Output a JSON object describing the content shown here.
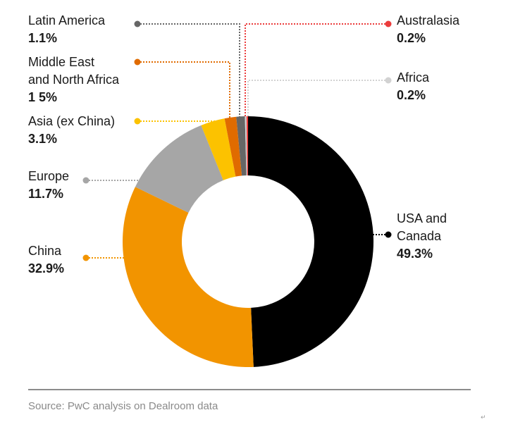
{
  "chart_data": {
    "type": "pie",
    "donut": true,
    "title": "",
    "slices": [
      {
        "label": "USA and Canada",
        "lines": [
          "USA and",
          "Canada"
        ],
        "value": 49.3,
        "value_text": "49.3%",
        "color": "#000000"
      },
      {
        "label": "China",
        "lines": [
          "China"
        ],
        "value": 32.9,
        "value_text": "32.9%",
        "color": "#f29400"
      },
      {
        "label": "Europe",
        "lines": [
          "Europe"
        ],
        "value": 11.7,
        "value_text": "11.7%",
        "color": "#a6a6a6"
      },
      {
        "label": "Asia (ex China)",
        "lines": [
          "Asia (ex China)"
        ],
        "value": 3.1,
        "value_text": "3.1%",
        "color": "#fcc200"
      },
      {
        "label": "Middle East and North Africa",
        "lines": [
          "Middle East",
          "and North Africa"
        ],
        "value": 1.5,
        "value_text": "1 5%",
        "color": "#e06b00"
      },
      {
        "label": "Latin America",
        "lines": [
          "Latin America"
        ],
        "value": 1.1,
        "value_text": "1.1%",
        "color": "#666666"
      },
      {
        "label": "Africa",
        "lines": [
          "Africa"
        ],
        "value": 0.2,
        "value_text": "0.2%",
        "color": "#d2d2d2"
      },
      {
        "label": "Australasia",
        "lines": [
          "Australasia"
        ],
        "value": 0.2,
        "value_text": "0.2%",
        "color": "#eb3c3c"
      }
    ]
  },
  "footer": {
    "source": "Source: PwC analysis on Dealroom data",
    "return_mark": "↵"
  }
}
